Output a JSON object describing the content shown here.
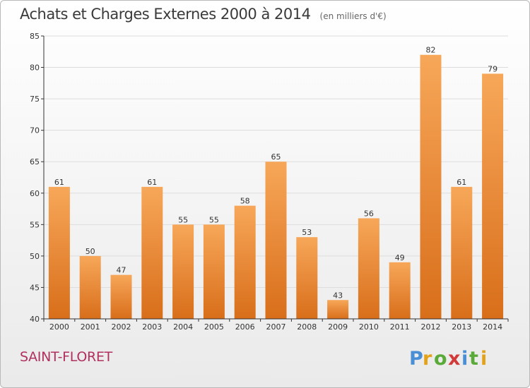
{
  "title": "Achats et Charges Externes 2000 à 2014",
  "unit": "(en milliers d'€)",
  "commune": "SAINT-FLORET",
  "logo": "Proxiti",
  "colors": {
    "bar_top": "#f7a759",
    "bar_bottom": "#d86e1a",
    "axis": "#333333",
    "grid": "#dddddd",
    "commune": "#b03060"
  },
  "chart_data": {
    "type": "bar",
    "title": "Achats et Charges Externes 2000 à 2014",
    "categories": [
      "2000",
      "2001",
      "2002",
      "2003",
      "2004",
      "2005",
      "2006",
      "2007",
      "2008",
      "2009",
      "2010",
      "2011",
      "2012",
      "2013",
      "2014"
    ],
    "values": [
      61,
      50,
      47,
      61,
      55,
      55,
      58,
      65,
      53,
      43,
      56,
      49,
      82,
      61,
      79
    ],
    "ylim": [
      40,
      85
    ],
    "yticks": [
      40,
      45,
      50,
      55,
      60,
      65,
      70,
      75,
      80,
      85
    ],
    "xlabel": "",
    "ylabel": "",
    "grid": true
  }
}
